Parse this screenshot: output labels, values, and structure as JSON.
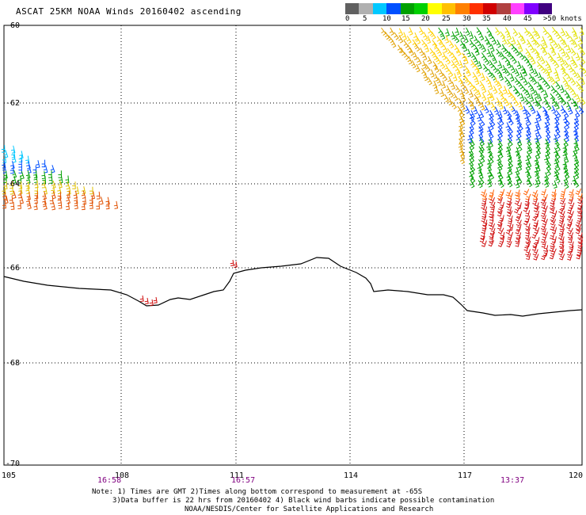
{
  "title": "ASCAT 25KM NOAA Winds 20160402 ascending",
  "legend": {
    "labels": [
      "0",
      "5",
      "10",
      "15",
      "20",
      "25",
      "30",
      "35",
      "40",
      "45",
      ">50 knots"
    ],
    "colors": [
      "#606060",
      "#b0b0b0",
      "#00c8ff",
      "#0050ff",
      "#00a000",
      "#00d000",
      "#ffff00",
      "#ffc000",
      "#ff8000",
      "#ff3000",
      "#d00000",
      "#b04040",
      "#ff40ff",
      "#8000ff",
      "#400080"
    ]
  },
  "axes": {
    "latitude_labels": [
      "-60",
      "-62",
      "-64",
      "-66",
      "-68",
      "-70"
    ],
    "longitude_labels": [
      "105",
      "108",
      "111",
      "114",
      "117",
      "120"
    ]
  },
  "pass_times": [
    "16:58",
    "16:57",
    "13:37"
  ],
  "notes": [
    "Note: 1) Times are GMT 2)Times along bottom correspond to measurement at -65S",
    "3)Data buffer is 22 hrs from 20160402 4) Black wind barbs indicate possible contamination",
    "NOAA/NESDIS/Center for Satellite Applications and Research"
  ]
}
